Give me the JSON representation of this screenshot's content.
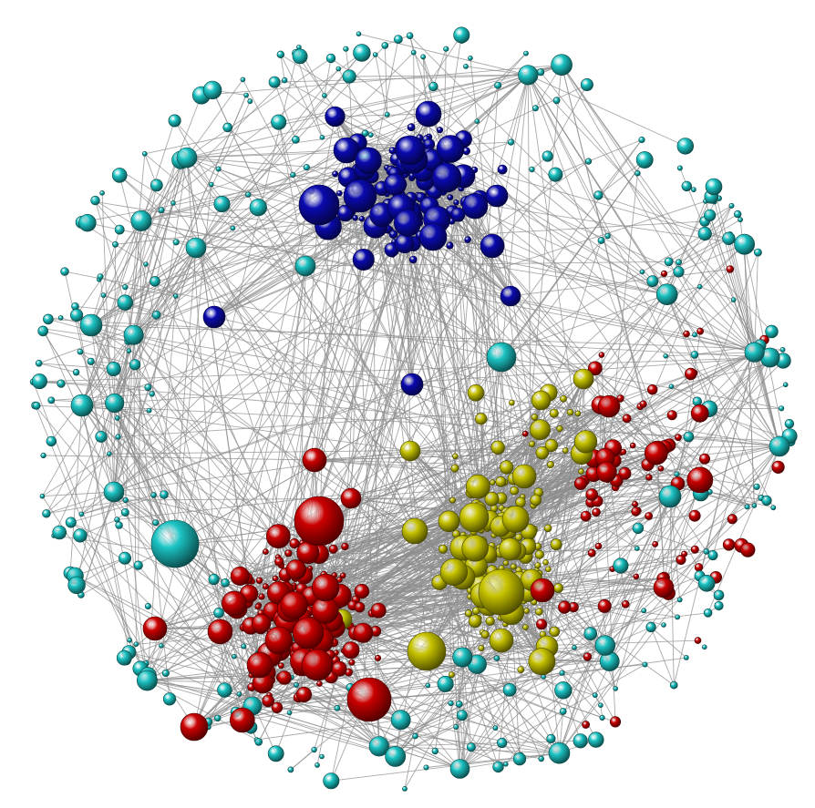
{
  "colors": {
    "background": "#ffffff",
    "edge": "#8c8c8c",
    "clusters": {
      "blue": "#0a0ab0",
      "cyan": "#1cc4c4",
      "red": "#cc0000",
      "yellow": "#c8c400"
    }
  },
  "node_style": "shaded-sphere",
  "clusters": [
    "blue",
    "cyan",
    "red",
    "yellow"
  ]
}
